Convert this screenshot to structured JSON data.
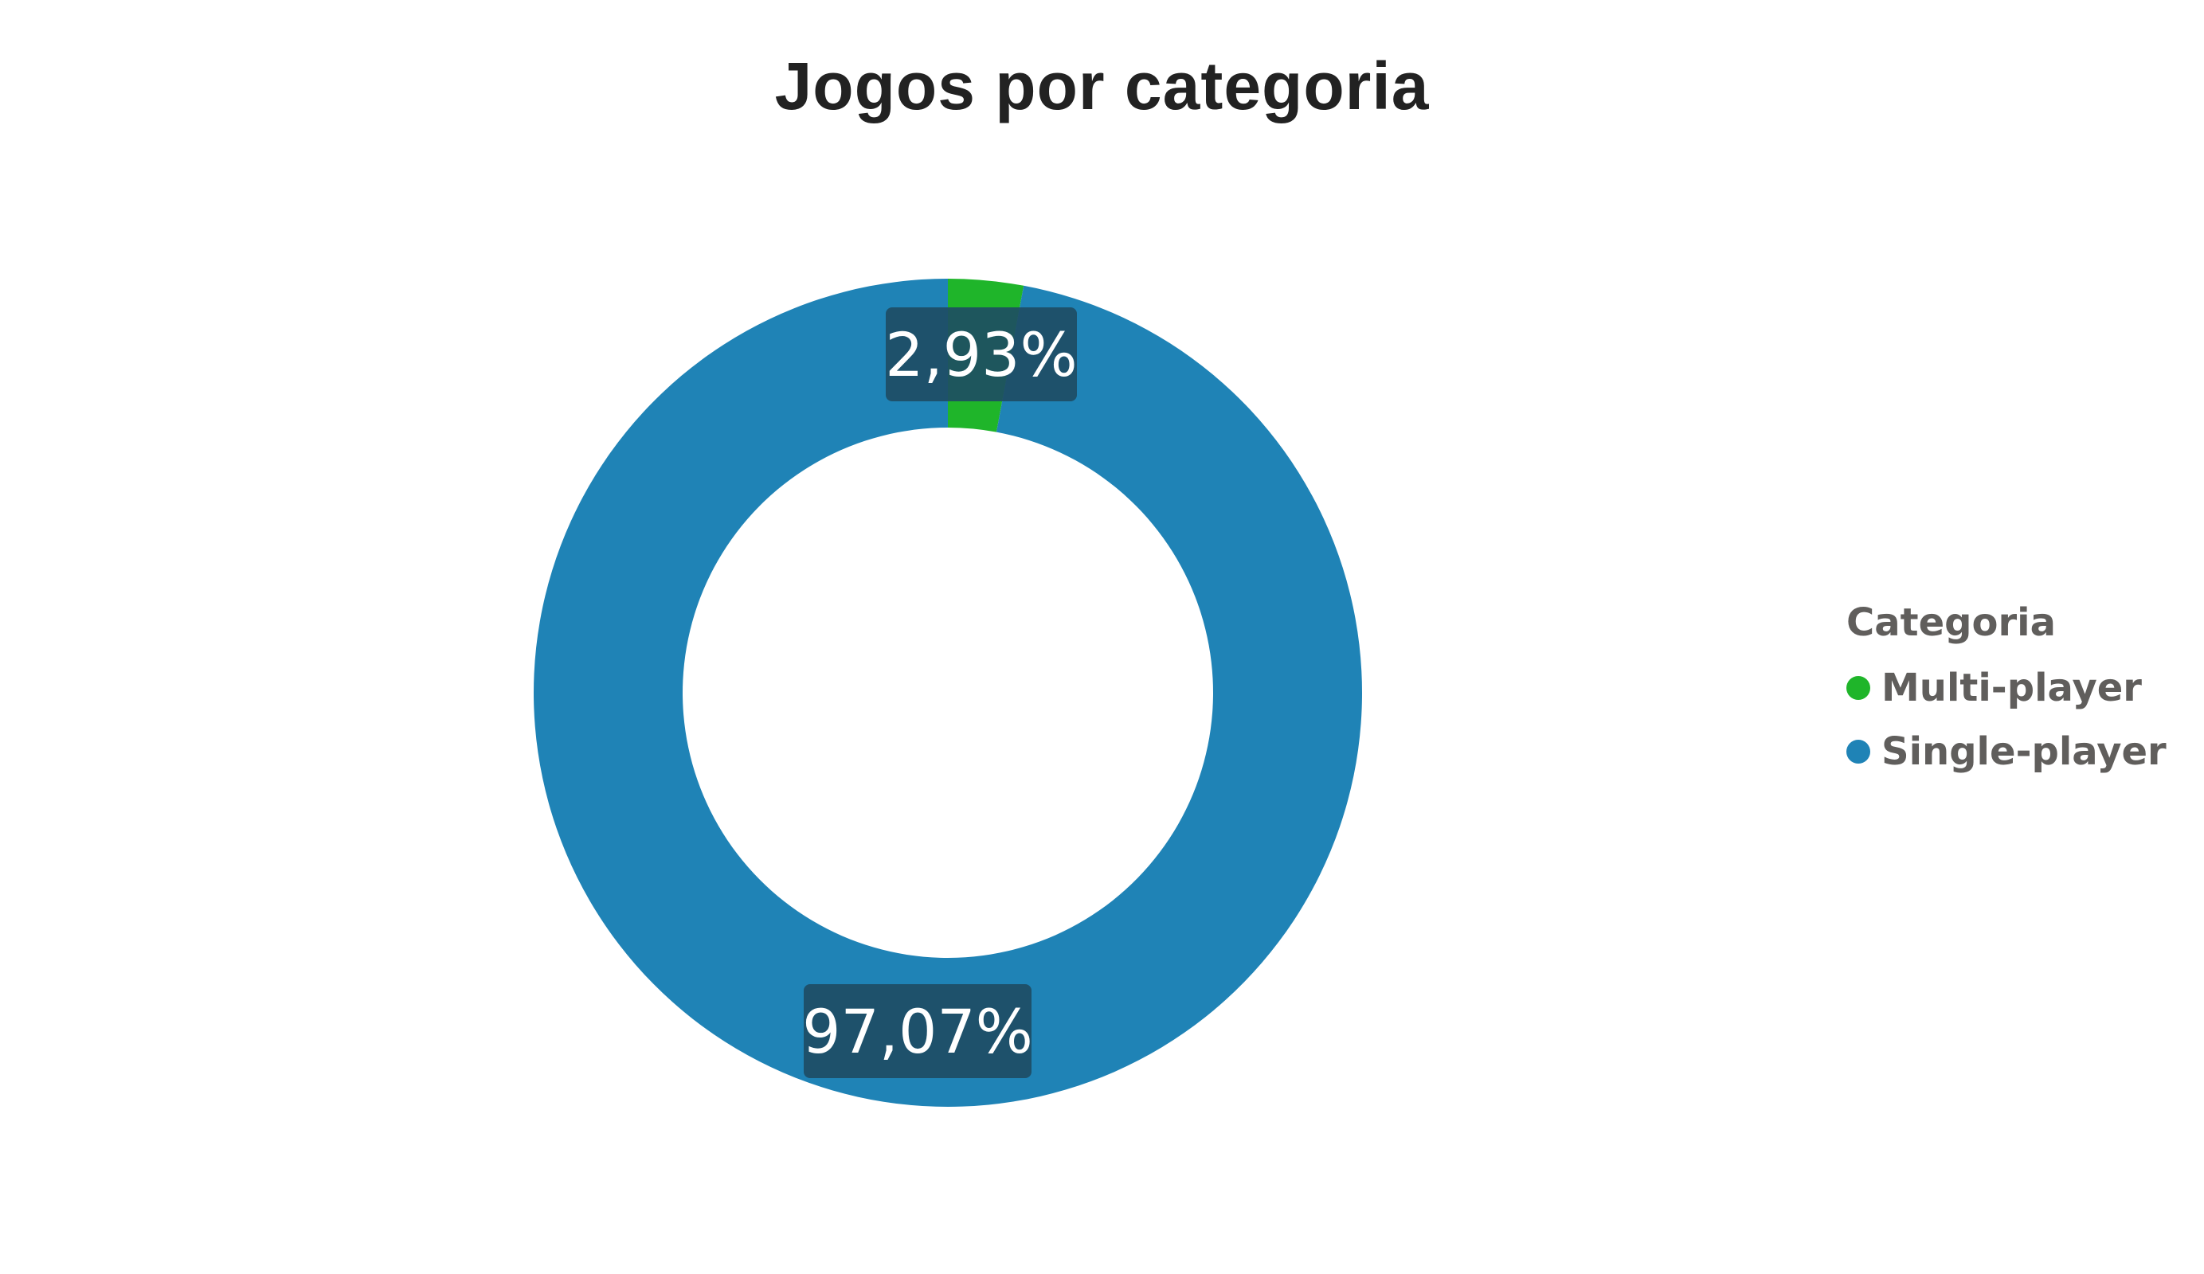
{
  "chart_data": {
    "type": "pie",
    "variant": "donut",
    "title": "Jogos por categoria",
    "legend": {
      "title": "Categoria",
      "placement": "right"
    },
    "categories": [
      "Multi-player",
      "Single-player"
    ],
    "values": [
      2.93,
      97.07
    ],
    "data_labels": [
      "2,93%",
      "97,07%"
    ],
    "colors": [
      "#1fb52a",
      "#1f83b6"
    ],
    "label_background": "#1e4b63",
    "start_angle": "top (12 o'clock), clockwise"
  }
}
